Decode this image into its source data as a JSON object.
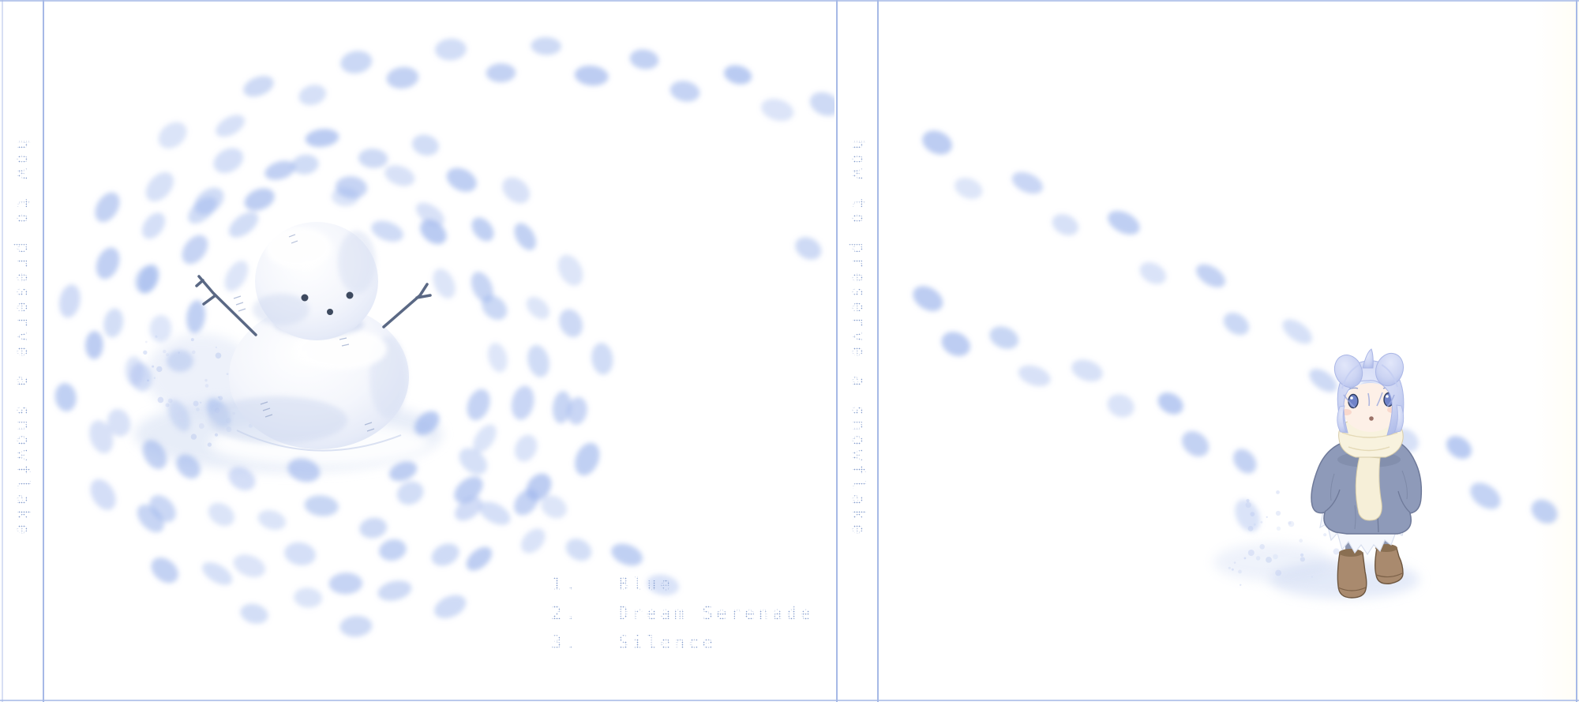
{
  "album": {
    "title": "how to preserve a snowflake"
  },
  "tracklist": [
    {
      "number": "1.",
      "title": "Blue"
    },
    {
      "number": "2.",
      "title": "Dream Serenade"
    },
    {
      "number": "3.",
      "title": "Silence"
    }
  ],
  "artwork": {
    "back_cover": "snowman with twig arms encircled by spiraling footprint trails in snow",
    "front_cover": "small girl in grey coat and cream scarf standing among footprint trails",
    "colors": {
      "panel_line": "#a6b9e6",
      "frame_line": "#b2c3ea",
      "text": "#8099cb",
      "footprint": "#9db5ec",
      "snow_shadow": "#dde6f6",
      "speckle": "#b6c6ee",
      "snowman_shade": "#ccd7ef",
      "twig": "#5a6884",
      "coat": "#8e9ab9",
      "scarf": "#f8f2de",
      "hair": "#ccd4f3",
      "skin": "#fdf0e7",
      "boots": "#a98a6e"
    }
  }
}
